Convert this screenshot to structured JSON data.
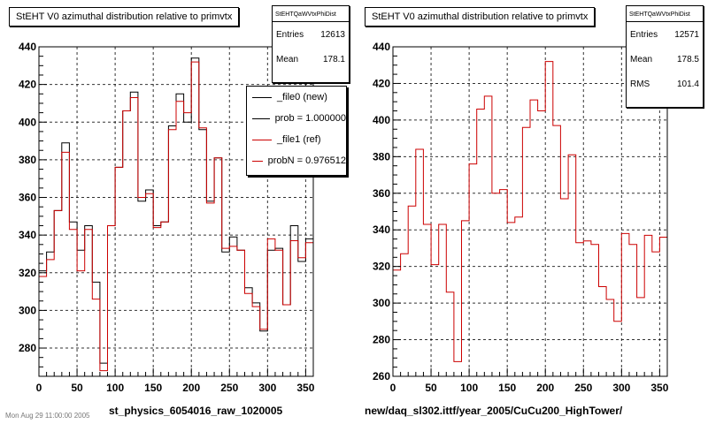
{
  "footer_text": "Mon Aug 29 11:00:00 2005",
  "chart_data": [
    {
      "type": "line",
      "title": "StEHT V0 azimuthal distribution relative to primvtx",
      "xlabel": "st_physics_6054016_raw_1020005",
      "ylabel": "",
      "xlim": [
        0,
        360
      ],
      "ylim": [
        265,
        440
      ],
      "xticks": [
        0,
        50,
        100,
        150,
        200,
        250,
        300,
        350
      ],
      "yticks": [
        280,
        300,
        320,
        340,
        360,
        380,
        400,
        420,
        440
      ],
      "grid": true,
      "bin_width": 10,
      "stats": {
        "name": "StEHTQaWVtxPhiDist",
        "rows": [
          {
            "label": "Entries",
            "value": "12613"
          },
          {
            "label": "Mean",
            "value": "178.1"
          }
        ]
      },
      "legend": {
        "placement": "top-right",
        "entries": [
          {
            "label": "_file0 (new)",
            "color": "#000000"
          },
          {
            "label": "prob = 1.000000",
            "color": "#000000"
          },
          {
            "label": "_file1 (ref)",
            "color": "#cc0000"
          },
          {
            "label": "probN = 0.976512",
            "color": "#cc0000"
          }
        ]
      },
      "series": [
        {
          "color": "#000000",
          "values": [
            321,
            331,
            353,
            389,
            347,
            332,
            345,
            315,
            272,
            345,
            376,
            406,
            416,
            358,
            364,
            345,
            347,
            398,
            415,
            400,
            434,
            396,
            358,
            381,
            331,
            339,
            332,
            312,
            304,
            289,
            332,
            333,
            303,
            345,
            326,
            338
          ]
        },
        {
          "color": "#cc0000",
          "values": [
            318,
            327,
            353,
            384,
            343,
            321,
            343,
            306,
            268,
            345,
            376,
            406,
            413,
            360,
            362,
            344,
            347,
            396,
            411,
            405,
            432,
            397,
            357,
            381,
            333,
            334,
            332,
            309,
            302,
            290,
            338,
            332,
            303,
            337,
            328,
            336
          ]
        }
      ]
    },
    {
      "type": "line",
      "title": "StEHT V0 azimuthal distribution relative to primvtx",
      "xlabel": "new/daq_sl302.ittf/year_2005/CuCu200_HighTower/",
      "ylabel": "",
      "xlim": [
        0,
        360
      ],
      "ylim": [
        260,
        440
      ],
      "xticks": [
        0,
        50,
        100,
        150,
        200,
        250,
        300,
        350
      ],
      "yticks": [
        260,
        280,
        300,
        320,
        340,
        360,
        380,
        400,
        420,
        440
      ],
      "grid": true,
      "bin_width": 10,
      "stats": {
        "name": "StEHTQaWVtxPhiDist",
        "rows": [
          {
            "label": "Entries",
            "value": "12571"
          },
          {
            "label": "Mean",
            "value": "178.5"
          },
          {
            "label": "RMS",
            "value": "101.4"
          }
        ]
      },
      "series": [
        {
          "color": "#cc0000",
          "values": [
            318,
            327,
            353,
            384,
            343,
            321,
            343,
            306,
            268,
            345,
            376,
            406,
            413,
            360,
            362,
            344,
            347,
            396,
            411,
            405,
            432,
            397,
            357,
            381,
            333,
            334,
            332,
            309,
            302,
            290,
            338,
            332,
            303,
            337,
            328,
            336
          ]
        }
      ]
    }
  ]
}
